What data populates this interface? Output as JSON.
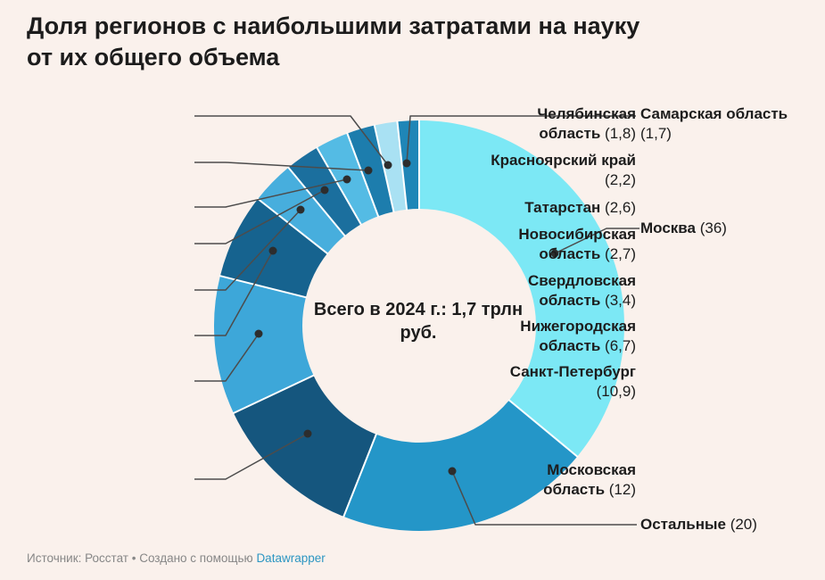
{
  "title_lines": [
    "Доля регионов с наибольшими затратами на науку",
    "от их общего объема"
  ],
  "footer": {
    "text": "Источник: Росстат • Создано с помощью ",
    "link_label": "Datawrapper"
  },
  "colors": {
    "background": "#faf1ec",
    "title": "#1c1c1c",
    "label": "#1d1d1d",
    "leader_line": "#4c4c4c",
    "leader_dot": "#2d2d2d",
    "separator": "#ffffff",
    "footer_text": "#878787",
    "link": "#2d96c2"
  },
  "chart_data": {
    "type": "pie",
    "subtype": "donut",
    "direction": "clockwise",
    "start_angle_deg": 0,
    "units": "percent",
    "total": 100,
    "title": "Доля регионов с наибольшими затратами на науку от их общего объема",
    "center_label": "Всего в 2024 г.: 1,7 трлн руб.",
    "legend_position": "callouts",
    "segments": [
      {
        "label": "Москва",
        "value": 36,
        "display": "(36)",
        "color": "#7ce8f5"
      },
      {
        "label": "Остальные",
        "value": 20,
        "display": "(20)",
        "color": "#2496c8"
      },
      {
        "label": "Московская область",
        "value": 12,
        "display": "(12)",
        "color": "#15567e"
      },
      {
        "label": "Санкт-Петербург",
        "value": 10.9,
        "display": "(10,9)",
        "color": "#3da7d9"
      },
      {
        "label": "Нижегородская область",
        "value": 6.7,
        "display": "(6,7)",
        "color": "#16638f"
      },
      {
        "label": "Свердловская область",
        "value": 3.4,
        "display": "(3,4)",
        "color": "#47aedd"
      },
      {
        "label": "Новосибирская область",
        "value": 2.7,
        "display": "(2,7)",
        "color": "#1b6f9e"
      },
      {
        "label": "Татарстан",
        "value": 2.6,
        "display": "(2,6)",
        "color": "#54bbe4"
      },
      {
        "label": "Красноярский край",
        "value": 2.2,
        "display": "(2,2)",
        "color": "#1d7dad"
      },
      {
        "label": "Челябинская область",
        "value": 1.8,
        "display": "(1,8)",
        "color": "#a9e1f3"
      },
      {
        "label": "Самарская область",
        "value": 1.7,
        "display": "(1,7)",
        "color": "#1f86b7"
      }
    ]
  }
}
